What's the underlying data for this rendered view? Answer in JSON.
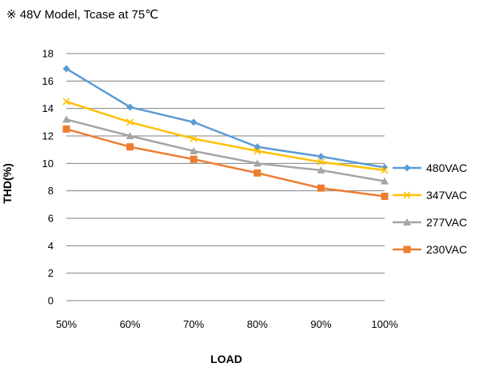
{
  "note": "※ 48V Model, Tcase at 75℃",
  "chart_data": {
    "type": "line",
    "title": "",
    "xlabel": "LOAD",
    "ylabel": "THD(%)",
    "categories": [
      "50%",
      "60%",
      "70%",
      "80%",
      "90%",
      "100%"
    ],
    "ylim": [
      0,
      18
    ],
    "yticks": [
      0,
      2,
      4,
      6,
      8,
      10,
      12,
      14,
      16,
      18
    ],
    "grid": true,
    "legend": "right",
    "series": [
      {
        "name": "480VAC",
        "marker": "diamond",
        "color": "#5B9BD5",
        "values": [
          16.9,
          14.1,
          13.0,
          11.2,
          10.5,
          9.7
        ]
      },
      {
        "name": "347VAC",
        "marker": "x",
        "color": "#FFC000",
        "values": [
          14.5,
          13.0,
          11.8,
          10.9,
          10.1,
          9.5
        ]
      },
      {
        "name": "277VAC",
        "marker": "triangle",
        "color": "#A5A5A5",
        "values": [
          13.2,
          12.0,
          10.9,
          10.0,
          9.5,
          8.7
        ]
      },
      {
        "name": "230VAC",
        "marker": "square",
        "color": "#ED7D31",
        "values": [
          12.5,
          11.2,
          10.3,
          9.3,
          8.2,
          7.6
        ]
      }
    ]
  }
}
